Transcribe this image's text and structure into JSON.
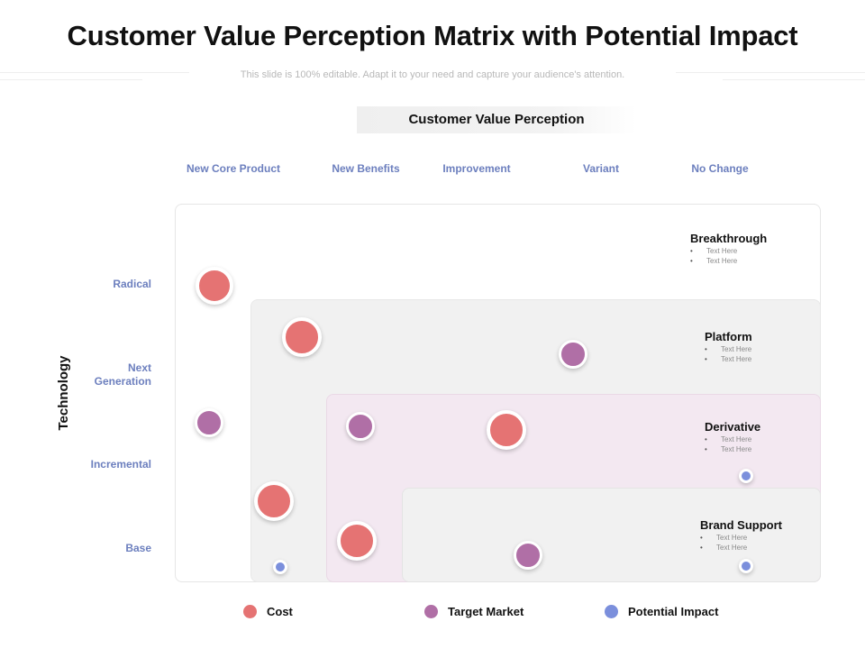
{
  "slide": {
    "title": "Customer Value Perception Matrix with Potential Impact",
    "subtitle": "This slide is 100% editable. Adapt it to your need and capture your audience's attention."
  },
  "matrix": {
    "header": "Customer Value Perception",
    "columns": [
      "New Core Product",
      "New Benefits",
      "Improvement",
      "Variant",
      "No Change"
    ],
    "rows": [
      "Radical",
      "Next\nGeneration",
      "Incremental",
      "Base"
    ],
    "axis_label": "Technology"
  },
  "regions": [
    {
      "title": "Breakthrough",
      "items": [
        "Text Here",
        "Text Here"
      ]
    },
    {
      "title": "Platform",
      "items": [
        "Text Here",
        "Text Here"
      ]
    },
    {
      "title": "Derivative",
      "items": [
        "Text Here",
        "Text Here"
      ]
    },
    {
      "title": "Brand Support",
      "items": [
        "Text Here",
        "Text Here"
      ]
    }
  ],
  "bubbles": [
    {
      "type": "cost"
    },
    {
      "type": "cost"
    },
    {
      "type": "target"
    },
    {
      "type": "target"
    },
    {
      "type": "target"
    },
    {
      "type": "cost"
    },
    {
      "type": "impact"
    },
    {
      "type": "cost"
    },
    {
      "type": "cost"
    },
    {
      "type": "target"
    },
    {
      "type": "impact"
    },
    {
      "type": "impact"
    }
  ],
  "legend": [
    {
      "key": "cost",
      "label": "Cost",
      "color": "#e57373"
    },
    {
      "key": "target",
      "label": "Target Market",
      "color": "#b06fa6"
    },
    {
      "key": "impact",
      "label": "Potential Impact",
      "color": "#7b8fdc"
    }
  ],
  "colors": {
    "accent_label": "#6c7fbe",
    "cost": "#e57373",
    "target": "#b06fa6",
    "impact": "#7b8fdc"
  }
}
